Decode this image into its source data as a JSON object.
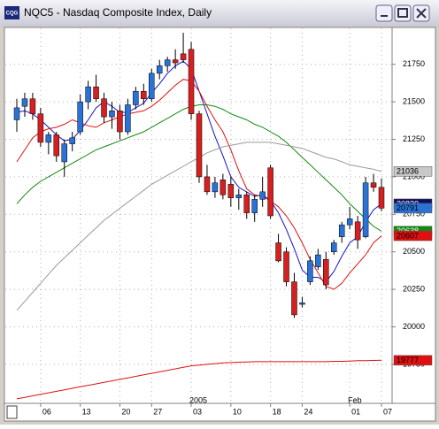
{
  "app_icon": "CQG",
  "chart_data": {
    "type": "candlestick",
    "title": "NQC5 - Nasdaq Composite Index, Daily",
    "categories": [
      null,
      null,
      null,
      "06",
      null,
      null,
      null,
      null,
      "13",
      null,
      null,
      null,
      null,
      "20",
      null,
      null,
      null,
      "27",
      null,
      null,
      null,
      null,
      "03",
      null,
      null,
      null,
      null,
      "10",
      null,
      null,
      null,
      null,
      "18",
      null,
      null,
      null,
      "24",
      null,
      null,
      null,
      null,
      null,
      "01",
      null,
      null,
      null,
      "07"
    ],
    "period_labels": [
      null,
      null,
      null,
      null,
      null,
      null,
      null,
      null,
      null,
      null,
      null,
      null,
      null,
      null,
      null,
      null,
      null,
      null,
      null,
      null,
      null,
      null,
      "2005",
      null,
      null,
      null,
      null,
      null,
      null,
      null,
      null,
      null,
      null,
      null,
      null,
      null,
      null,
      null,
      null,
      null,
      null,
      null,
      "Feb",
      null,
      null,
      null,
      null
    ],
    "open": [
      21380,
      21470,
      21520,
      21420,
      21230,
      21280,
      21100,
      21220,
      21300,
      21500,
      21600,
      21520,
      21400,
      21440,
      21300,
      21480,
      21570,
      21520,
      21690,
      21740,
      21780,
      21820,
      21850,
      21420,
      21000,
      20900,
      20980,
      20950,
      20860,
      20880,
      20760,
      20850,
      21060,
      20560,
      20500,
      20300,
      20150,
      20300,
      20400,
      20450,
      20500,
      20600,
      20680,
      20700,
      20600,
      20960,
      20930
    ],
    "high": [
      21520,
      21560,
      21560,
      21460,
      21300,
      21300,
      21250,
      21300,
      21550,
      21640,
      21680,
      21560,
      21500,
      21480,
      21520,
      21600,
      21620,
      21720,
      21780,
      21800,
      21850,
      21960,
      21900,
      21440,
      21080,
      21000,
      21020,
      21000,
      20920,
      20900,
      20880,
      21000,
      21080,
      20620,
      20530,
      20360,
      20200,
      20470,
      20520,
      20500,
      20580,
      20700,
      20800,
      20740,
      21000,
      21020,
      20990
    ],
    "low": [
      21300,
      21400,
      21380,
      21200,
      21150,
      21100,
      21000,
      21170,
      21280,
      21450,
      21500,
      21360,
      21320,
      21250,
      21280,
      21450,
      21480,
      21500,
      21650,
      21700,
      21720,
      21760,
      21380,
      20960,
      20880,
      20860,
      20850,
      20800,
      20780,
      20720,
      20700,
      20800,
      20720,
      20430,
      20270,
      20060,
      20130,
      20280,
      20380,
      20250,
      20480,
      20560,
      20650,
      20520,
      20590,
      20900,
      20770
    ],
    "close": [
      21460,
      21520,
      21420,
      21230,
      21280,
      21140,
      21220,
      21260,
      21500,
      21600,
      21520,
      21400,
      21440,
      21300,
      21480,
      21570,
      21520,
      21690,
      21740,
      21780,
      21760,
      21780,
      21420,
      21000,
      20900,
      20960,
      20880,
      20860,
      20880,
      20760,
      20850,
      20900,
      20740,
      20440,
      20300,
      20080,
      20160,
      20440,
      20480,
      20280,
      20560,
      20680,
      20720,
      20580,
      20960,
      20930,
      20791
    ],
    "up_color": "#2a72d4",
    "down_color": "#d42020",
    "series": [
      {
        "color": "#1414c8",
        "values": [
          21430,
          21440,
          21420,
          21380,
          21330,
          21280,
          21240,
          21250,
          21310,
          21380,
          21460,
          21500,
          21470,
          21430,
          21430,
          21460,
          21490,
          21560,
          21620,
          21690,
          21740,
          21770,
          21720,
          21570,
          21420,
          21270,
          21140,
          21000,
          20930,
          20900,
          20870,
          20880,
          20840,
          20760,
          20650,
          20520,
          20380,
          20330,
          20330,
          20300,
          20370,
          20470,
          20560,
          20600,
          20700,
          20780,
          20820
        ]
      },
      {
        "color": "#e01010",
        "values": [
          21100,
          21180,
          21260,
          21300,
          21320,
          21330,
          21350,
          21380,
          21360,
          21340,
          21330,
          21360,
          21380,
          21400,
          21420,
          21430,
          21440,
          21470,
          21510,
          21560,
          21610,
          21650,
          21640,
          21570,
          21470,
          21380,
          21300,
          21180,
          21040,
          20920,
          20880,
          20870,
          20840,
          20800,
          20740,
          20660,
          20560,
          20450,
          20360,
          20270,
          20250,
          20290,
          20360,
          20420,
          20480,
          20560,
          20607
        ]
      },
      {
        "color": "#108a10",
        "values": [
          20820,
          20880,
          20930,
          20970,
          21000,
          21030,
          21060,
          21090,
          21120,
          21150,
          21180,
          21200,
          21220,
          21240,
          21260,
          21280,
          21300,
          21330,
          21360,
          21390,
          21420,
          21450,
          21470,
          21480,
          21480,
          21470,
          21450,
          21420,
          21400,
          21380,
          21350,
          21330,
          21300,
          21270,
          21230,
          21180,
          21130,
          21080,
          21030,
          20980,
          20930,
          20880,
          20820,
          20770,
          20720,
          20670,
          20638
        ]
      },
      {
        "color": "#9a9a9a",
        "values": [
          20110,
          20170,
          20230,
          20290,
          20350,
          20410,
          20460,
          20510,
          20560,
          20610,
          20660,
          20710,
          20750,
          20790,
          20830,
          20870,
          20910,
          20950,
          20980,
          21010,
          21040,
          21070,
          21100,
          21130,
          21160,
          21180,
          21200,
          21210,
          21220,
          21230,
          21230,
          21230,
          21230,
          21220,
          21210,
          21200,
          21190,
          21170,
          21150,
          21130,
          21120,
          21100,
          21080,
          21070,
          21060,
          21050,
          21036
        ]
      },
      {
        "color": "#e01010",
        "values": [
          19520,
          19530,
          19540,
          19550,
          19560,
          19570,
          19580,
          19590,
          19600,
          19610,
          19620,
          19630,
          19640,
          19650,
          19660,
          19670,
          19680,
          19690,
          19700,
          19710,
          19720,
          19730,
          19740,
          19745,
          19750,
          19755,
          19760,
          19762,
          19764,
          19766,
          19768,
          19768,
          19768,
          19768,
          19768,
          19768,
          19768,
          19768,
          19768,
          19768,
          19770,
          19770,
          19772,
          19774,
          19775,
          19776,
          19777
        ]
      }
    ],
    "price_labels": [
      {
        "value": 21036,
        "color": "#c8c8c8",
        "text_color": "#000000"
      },
      {
        "value": 20820,
        "color": "#101060",
        "text_color": "#ffffff"
      },
      {
        "value": 20791,
        "color": "#2a72d4",
        "text_color": "#000000"
      },
      {
        "value": 20638,
        "color": "#108a10",
        "text_color": "#ffffff"
      },
      {
        "value": 20607,
        "color": "#e01010",
        "text_color": "#000000"
      },
      {
        "value": 19777,
        "color": "#e01010",
        "text_color": "#000000"
      }
    ],
    "ylim": [
      19490,
      21990
    ],
    "yticks": [
      19750,
      20000,
      20250,
      20500,
      20750,
      21000,
      21250,
      21500,
      21750
    ],
    "grid": true
  }
}
